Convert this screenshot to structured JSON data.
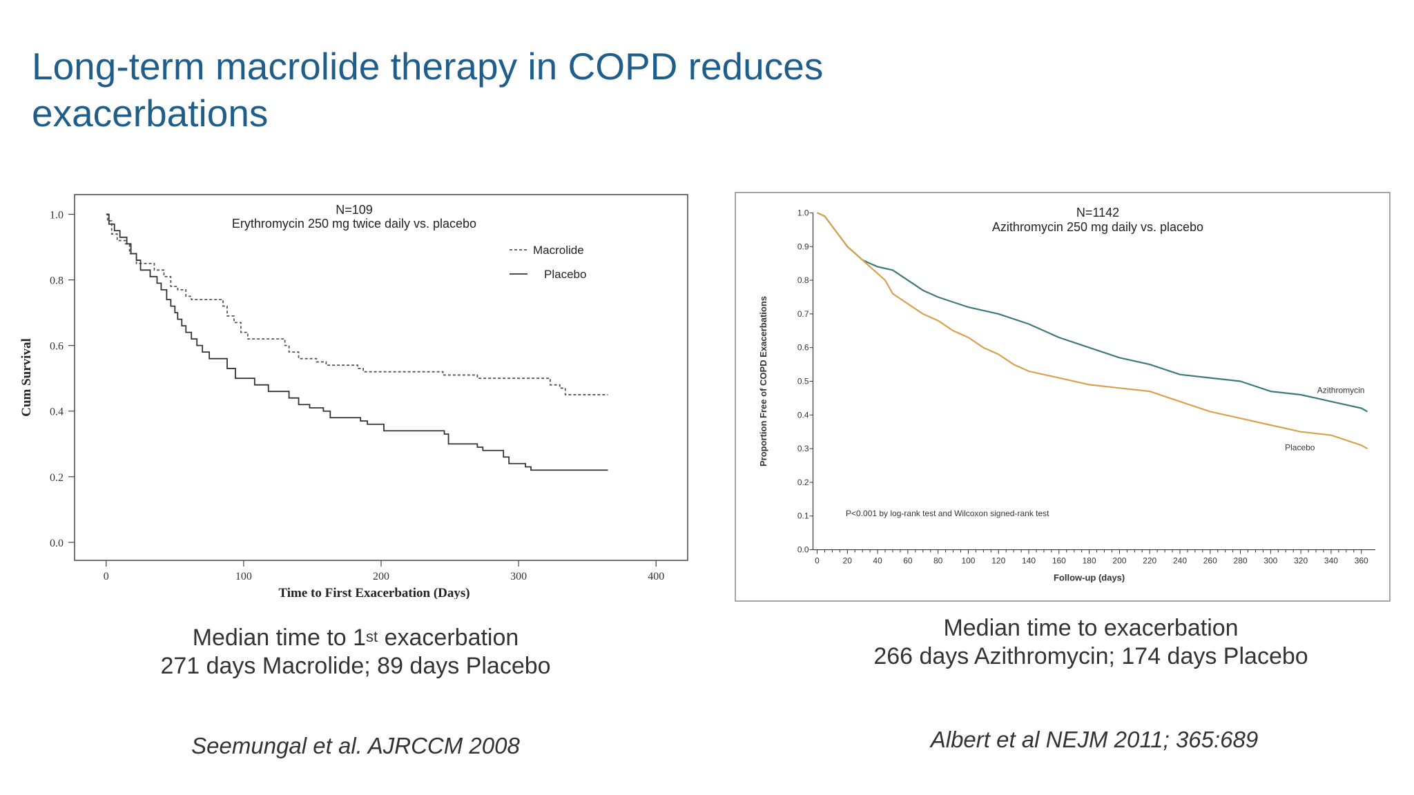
{
  "title": "Long-term macrolide therapy in COPD reduces exacerbations",
  "left_caption": {
    "line1_pre": "Median time to 1",
    "line1_sup": "st",
    "line1_post": " exacerbation",
    "line2": "271 days Macrolide; 89 days Placebo"
  },
  "right_caption": {
    "line1": "Median time to exacerbation",
    "line2": "266 days Azithromycin; 174 days Placebo"
  },
  "left_citation": "Seemungal et al. AJRCCM 2008",
  "right_citation": "Albert et al NEJM 2011; 365:689",
  "chart_data": [
    {
      "type": "line",
      "title": "N=109",
      "subtitle": "Erythromycin 250 mg twice daily vs. placebo",
      "xlabel": "Time to First Exacerbation (Days)",
      "ylabel": "Cum Survival",
      "xlim": [
        -23,
        423
      ],
      "ylim": [
        -0.055,
        1.06
      ],
      "x_ticks": [
        0,
        100,
        200,
        300,
        400
      ],
      "x_tick_labels": [
        "0",
        "100",
        "200",
        "300",
        "400"
      ],
      "y_ticks": [
        0.0,
        0.2,
        0.4,
        0.6,
        0.8,
        1.0
      ],
      "y_tick_labels": [
        "0.0",
        "0.2",
        "0.4",
        "0.6",
        "0.8",
        "1.0"
      ],
      "step": true,
      "legend_position": "top-right",
      "series": [
        {
          "name": "Macrolide",
          "color": "#555555",
          "dash": true,
          "points": [
            [
              0,
              1.0
            ],
            [
              1,
              0.98
            ],
            [
              4,
              0.94
            ],
            [
              8,
              0.92
            ],
            [
              14,
              0.91
            ],
            [
              17,
              0.88
            ],
            [
              22,
              0.85
            ],
            [
              35,
              0.83
            ],
            [
              42,
              0.81
            ],
            [
              47,
              0.78
            ],
            [
              52,
              0.77
            ],
            [
              58,
              0.75
            ],
            [
              62,
              0.74
            ],
            [
              85,
              0.72
            ],
            [
              88,
              0.69
            ],
            [
              93,
              0.67
            ],
            [
              98,
              0.64
            ],
            [
              103,
              0.62
            ],
            [
              130,
              0.6
            ],
            [
              133,
              0.58
            ],
            [
              140,
              0.56
            ],
            [
              153,
              0.55
            ],
            [
              160,
              0.54
            ],
            [
              183,
              0.53
            ],
            [
              187,
              0.52
            ],
            [
              245,
              0.51
            ],
            [
              270,
              0.5
            ],
            [
              323,
              0.48
            ],
            [
              330,
              0.47
            ],
            [
              334,
              0.45
            ],
            [
              365,
              0.45
            ]
          ]
        },
        {
          "name": "Placebo",
          "color": "#333333",
          "dash": false,
          "points": [
            [
              0,
              1.0
            ],
            [
              2,
              0.97
            ],
            [
              6,
              0.95
            ],
            [
              10,
              0.93
            ],
            [
              15,
              0.91
            ],
            [
              18,
              0.88
            ],
            [
              22,
              0.86
            ],
            [
              25,
              0.83
            ],
            [
              32,
              0.81
            ],
            [
              37,
              0.79
            ],
            [
              40,
              0.77
            ],
            [
              44,
              0.74
            ],
            [
              47,
              0.72
            ],
            [
              50,
              0.7
            ],
            [
              52,
              0.68
            ],
            [
              55,
              0.66
            ],
            [
              58,
              0.64
            ],
            [
              62,
              0.62
            ],
            [
              66,
              0.6
            ],
            [
              70,
              0.58
            ],
            [
              75,
              0.56
            ],
            [
              88,
              0.53
            ],
            [
              94,
              0.5
            ],
            [
              108,
              0.48
            ],
            [
              118,
              0.46
            ],
            [
              133,
              0.44
            ],
            [
              140,
              0.42
            ],
            [
              148,
              0.41
            ],
            [
              158,
              0.4
            ],
            [
              163,
              0.38
            ],
            [
              185,
              0.37
            ],
            [
              190,
              0.36
            ],
            [
              202,
              0.34
            ],
            [
              246,
              0.33
            ],
            [
              249,
              0.3
            ],
            [
              270,
              0.29
            ],
            [
              274,
              0.28
            ],
            [
              289,
              0.26
            ],
            [
              293,
              0.24
            ],
            [
              305,
              0.23
            ],
            [
              309,
              0.22
            ],
            [
              365,
              0.22
            ]
          ]
        }
      ]
    },
    {
      "type": "line",
      "title": "N=1142",
      "subtitle": "Azithromycin 250 mg daily vs. placebo",
      "xlabel": "Follow-up (days)",
      "ylabel": "Proportion Free of COPD Exacerbations",
      "annotation": "P<0.001 by log-rank test and Wilcoxon signed-rank test",
      "xlim": [
        -8,
        372
      ],
      "ylim": [
        -0.005,
        1.005
      ],
      "x_ticks": [
        0,
        20,
        40,
        60,
        80,
        100,
        120,
        140,
        160,
        180,
        200,
        220,
        240,
        260,
        280,
        300,
        320,
        340,
        360
      ],
      "x_tick_labels": [
        "0",
        "20",
        "40",
        "60",
        "80",
        "100",
        "120",
        "140",
        "160",
        "180",
        "200",
        "220",
        "240",
        "260",
        "280",
        "300",
        "320",
        "340",
        "360"
      ],
      "y_ticks": [
        0.0,
        0.1,
        0.2,
        0.3,
        0.4,
        0.5,
        0.6,
        0.7,
        0.8,
        0.9,
        1.0
      ],
      "y_tick_labels": [
        "0.0",
        "0.1",
        "0.2",
        "0.3",
        "0.4",
        "0.5",
        "0.6",
        "0.7",
        "0.8",
        "0.9",
        "1.0"
      ],
      "step": false,
      "legend_position": "inline-right",
      "series": [
        {
          "name": "Azithromycin",
          "color": "#3c7a78",
          "dash": false,
          "points": [
            [
              0,
              1.0
            ],
            [
              5,
              0.99
            ],
            [
              10,
              0.96
            ],
            [
              15,
              0.93
            ],
            [
              20,
              0.9
            ],
            [
              25,
              0.88
            ],
            [
              30,
              0.86
            ],
            [
              35,
              0.85
            ],
            [
              40,
              0.84
            ],
            [
              50,
              0.83
            ],
            [
              60,
              0.8
            ],
            [
              70,
              0.77
            ],
            [
              80,
              0.75
            ],
            [
              100,
              0.72
            ],
            [
              120,
              0.7
            ],
            [
              140,
              0.67
            ],
            [
              160,
              0.63
            ],
            [
              180,
              0.6
            ],
            [
              200,
              0.57
            ],
            [
              220,
              0.55
            ],
            [
              240,
              0.52
            ],
            [
              260,
              0.51
            ],
            [
              280,
              0.5
            ],
            [
              300,
              0.47
            ],
            [
              320,
              0.46
            ],
            [
              340,
              0.44
            ],
            [
              360,
              0.42
            ],
            [
              364,
              0.41
            ]
          ]
        },
        {
          "name": "Placebo",
          "color": "#d9a050",
          "dash": false,
          "points": [
            [
              0,
              1.0
            ],
            [
              5,
              0.99
            ],
            [
              10,
              0.96
            ],
            [
              15,
              0.93
            ],
            [
              20,
              0.9
            ],
            [
              25,
              0.88
            ],
            [
              30,
              0.86
            ],
            [
              35,
              0.84
            ],
            [
              40,
              0.82
            ],
            [
              45,
              0.8
            ],
            [
              50,
              0.76
            ],
            [
              60,
              0.73
            ],
            [
              70,
              0.7
            ],
            [
              80,
              0.68
            ],
            [
              90,
              0.65
            ],
            [
              100,
              0.63
            ],
            [
              110,
              0.6
            ],
            [
              120,
              0.58
            ],
            [
              130,
              0.55
            ],
            [
              140,
              0.53
            ],
            [
              160,
              0.51
            ],
            [
              180,
              0.49
            ],
            [
              200,
              0.48
            ],
            [
              220,
              0.47
            ],
            [
              240,
              0.44
            ],
            [
              260,
              0.41
            ],
            [
              280,
              0.39
            ],
            [
              300,
              0.37
            ],
            [
              320,
              0.35
            ],
            [
              340,
              0.34
            ],
            [
              360,
              0.31
            ],
            [
              364,
              0.3
            ]
          ]
        }
      ]
    }
  ]
}
